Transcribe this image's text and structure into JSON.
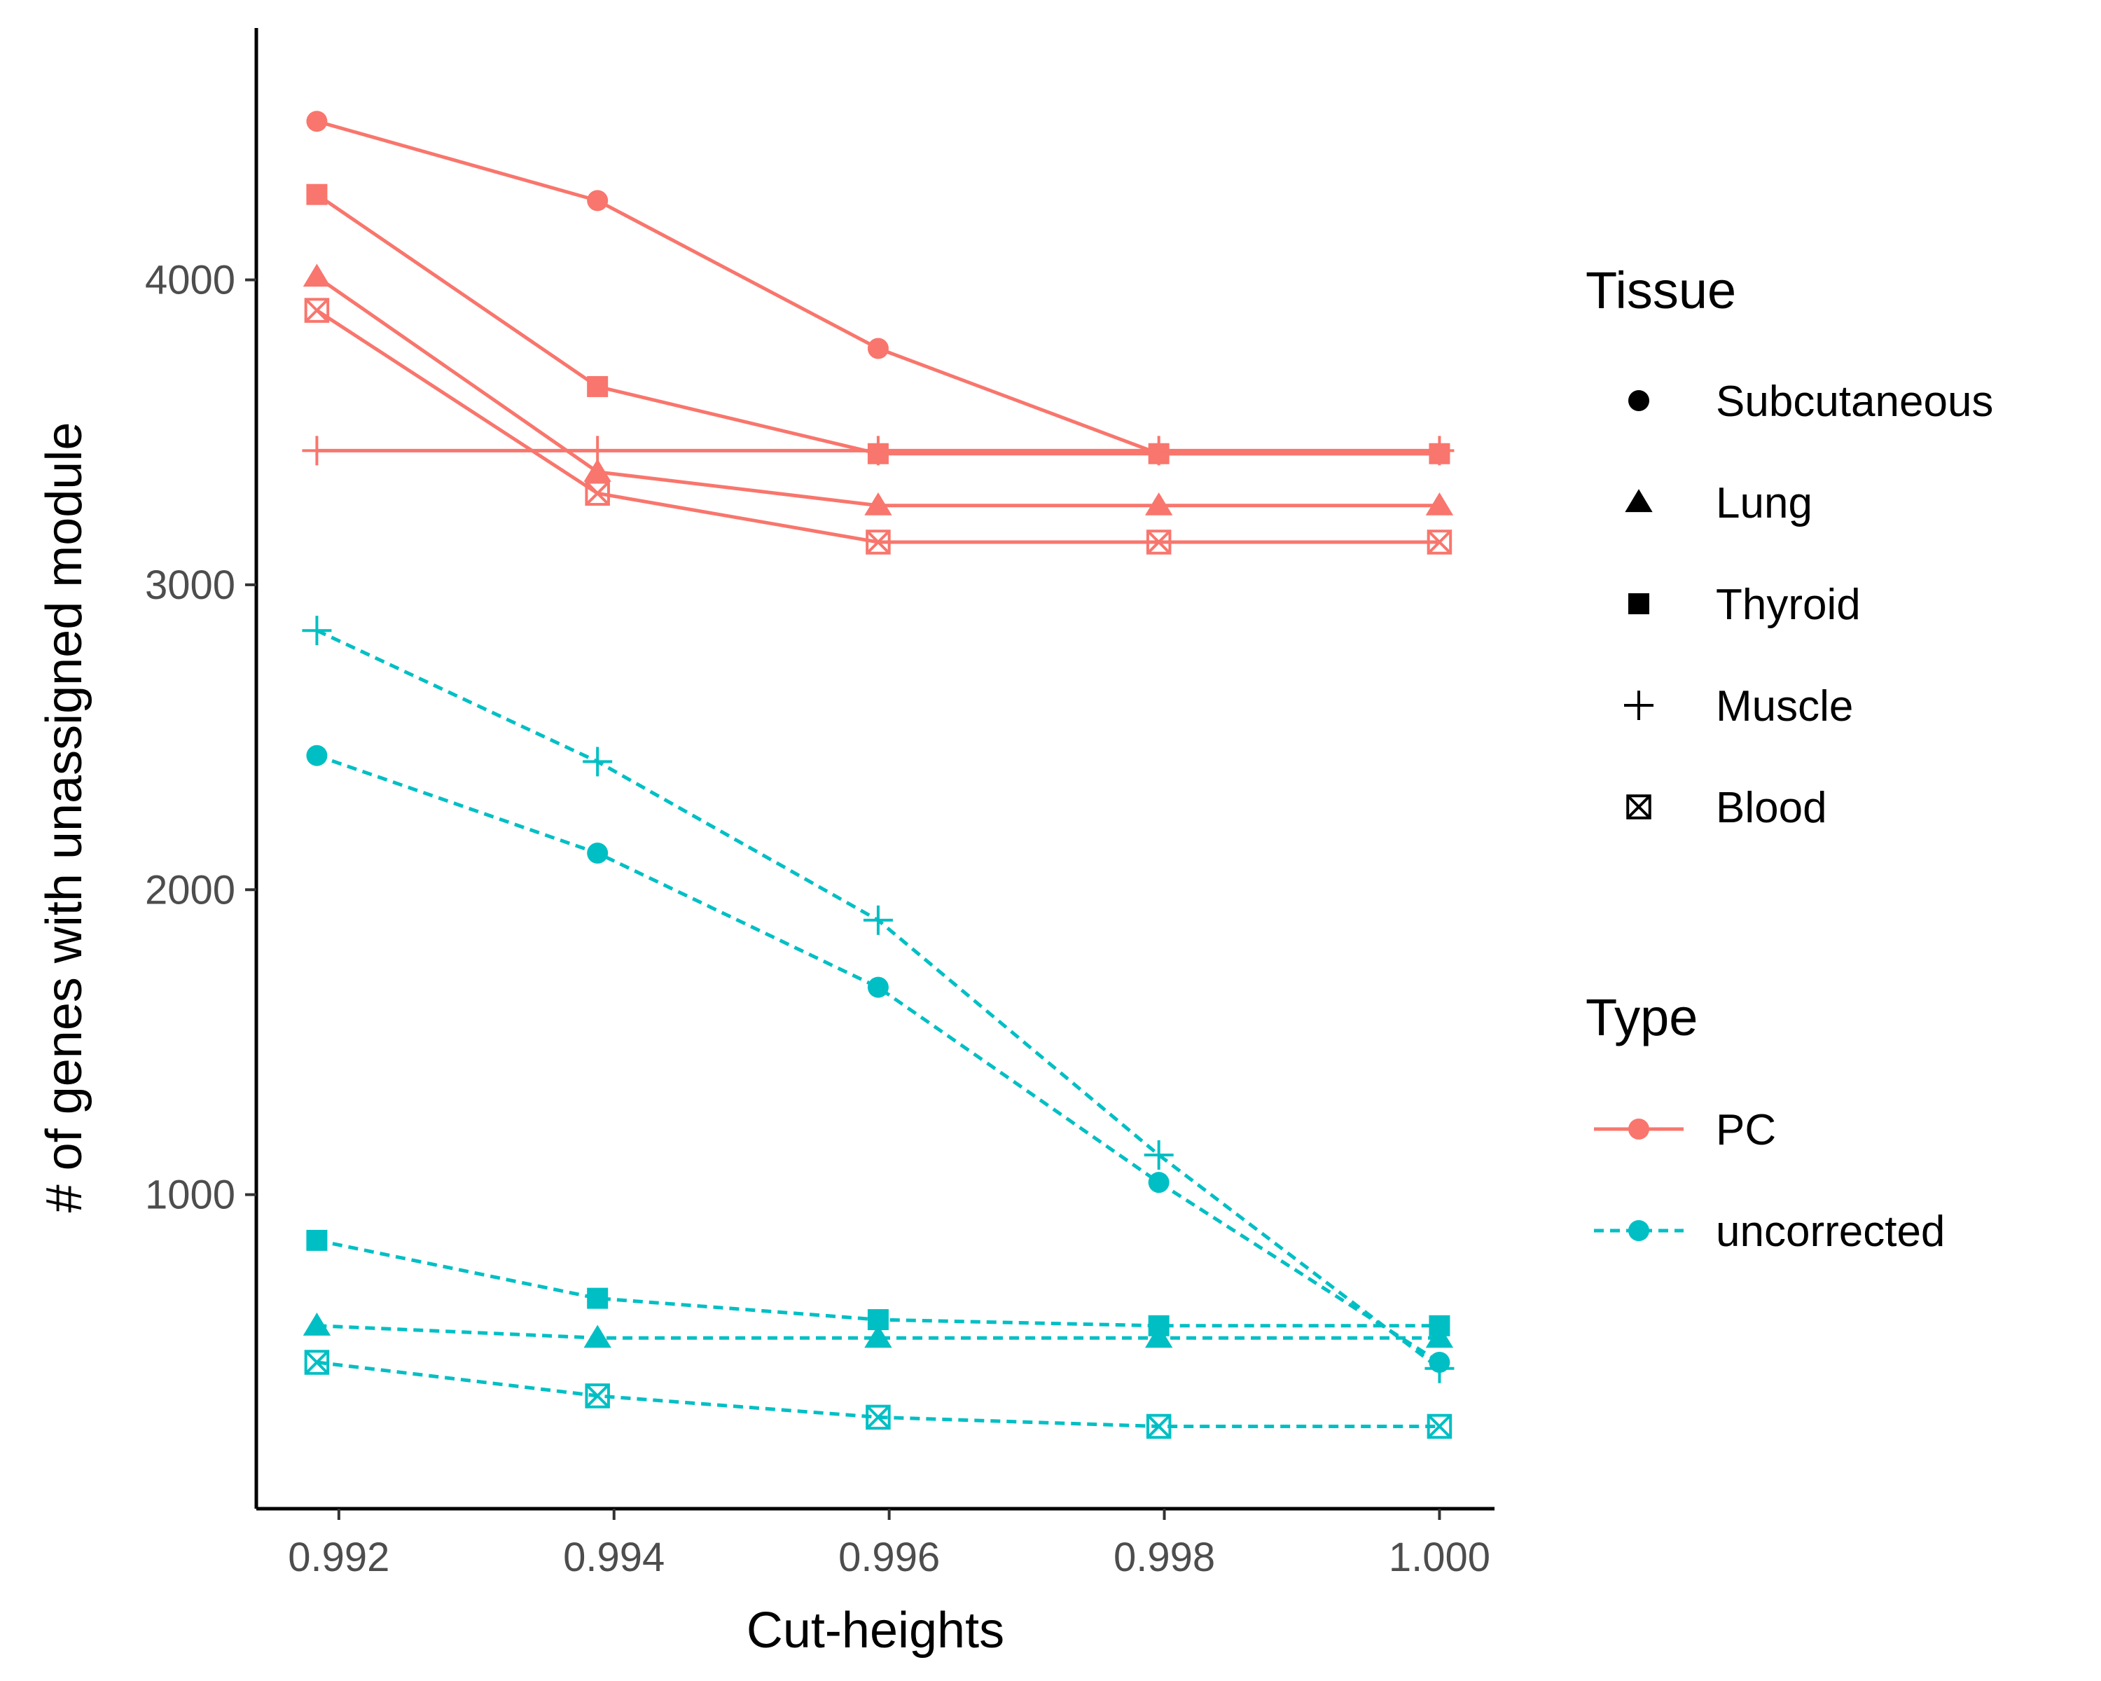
{
  "chart_data": {
    "type": "line",
    "title": "",
    "xlabel": "Cut-heights",
    "ylabel": "# of genes with unassigned module",
    "xlim": [
      0.9914,
      1.0004
    ],
    "ylim": [
      -30,
      4780
    ],
    "x_ticks": [
      0.992,
      0.994,
      0.996,
      0.998,
      1.0
    ],
    "x_tick_labels": [
      "0.992",
      "0.994",
      "0.996",
      "0.998",
      "1.000"
    ],
    "y_ticks": [
      1000,
      2000,
      3000,
      4000
    ],
    "y_tick_labels": [
      "1000",
      "2000",
      "3000",
      "4000"
    ],
    "x": [
      0.99184,
      0.99388,
      0.99592,
      0.99796,
      1.0
    ],
    "grid": false,
    "legend": {
      "placement": "right",
      "tissue_title": "Tissue",
      "tissues": [
        {
          "name": "Subcutaneous",
          "shape": "circle"
        },
        {
          "name": "Lung",
          "shape": "triangle"
        },
        {
          "name": "Thyroid",
          "shape": "square"
        },
        {
          "name": "Muscle",
          "shape": "plus"
        },
        {
          "name": "Blood",
          "shape": "boxx"
        }
      ],
      "type_title": "Type",
      "types": [
        {
          "name": "PC",
          "color": "#F8766D",
          "dash": "solid"
        },
        {
          "name": "uncorrected",
          "color": "#00BFC4",
          "dash": "dashed"
        }
      ]
    },
    "series": [
      {
        "type": "PC",
        "tissue": "Subcutaneous",
        "values": [
          4520,
          4260,
          3775,
          3430,
          3430
        ]
      },
      {
        "type": "PC",
        "tissue": "Thyroid",
        "values": [
          4280,
          3650,
          3430,
          3430,
          3430
        ]
      },
      {
        "type": "PC",
        "tissue": "Lung",
        "values": [
          4010,
          3370,
          3260,
          3260,
          3260
        ]
      },
      {
        "type": "PC",
        "tissue": "Blood",
        "values": [
          3900,
          3300,
          3140,
          3140,
          3140
        ]
      },
      {
        "type": "PC",
        "tissue": "Muscle",
        "values": [
          3440,
          3440,
          3440,
          3440,
          3440
        ]
      },
      {
        "type": "uncorrected",
        "tissue": "Muscle",
        "values": [
          2850,
          2420,
          1900,
          1130,
          430
        ]
      },
      {
        "type": "uncorrected",
        "tissue": "Subcutaneous",
        "values": [
          2440,
          2120,
          1680,
          1040,
          450
        ]
      },
      {
        "type": "uncorrected",
        "tissue": "Thyroid",
        "values": [
          850,
          660,
          590,
          570,
          570
        ]
      },
      {
        "type": "uncorrected",
        "tissue": "Lung",
        "values": [
          570,
          530,
          530,
          530,
          530
        ]
      },
      {
        "type": "uncorrected",
        "tissue": "Blood",
        "values": [
          450,
          340,
          270,
          240,
          240
        ]
      }
    ]
  }
}
